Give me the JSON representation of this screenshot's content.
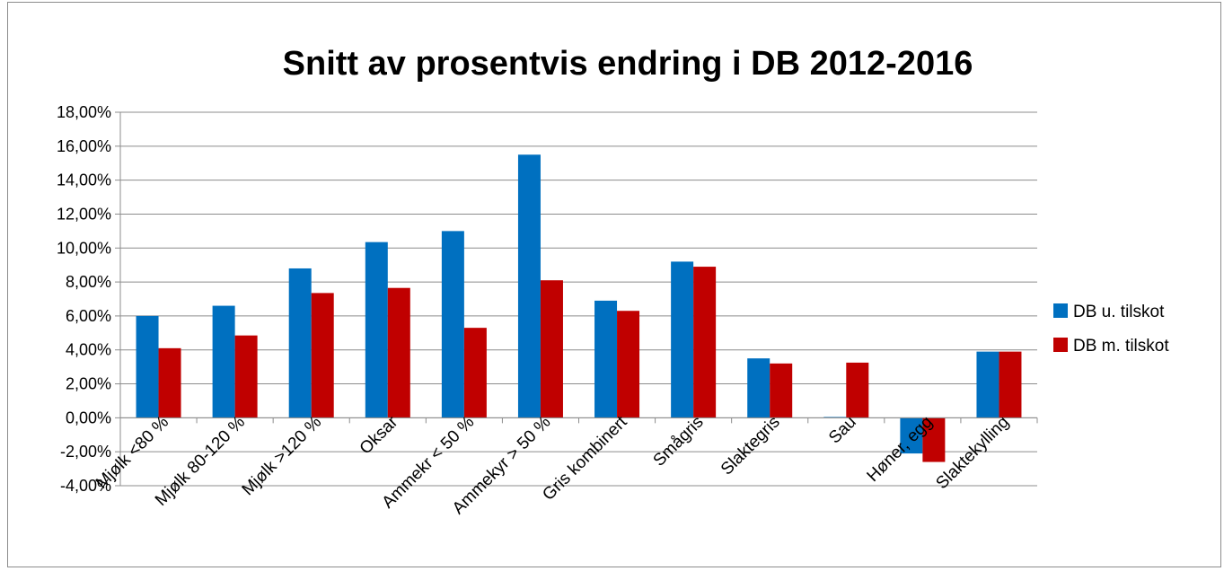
{
  "chart_data": {
    "type": "bar",
    "title": "Snitt av prosentvis endring i DB 2012-2016",
    "xlabel": "",
    "ylabel": "",
    "ylim": [
      -4,
      18
    ],
    "ytick_step": 2,
    "ytick_labels": [
      "-4,00%",
      "-2,00%",
      "0,00%",
      "2,00%",
      "4,00%",
      "6,00%",
      "8,00%",
      "10,00%",
      "12,00%",
      "14,00%",
      "16,00%",
      "18,00%"
    ],
    "grid": true,
    "legend_position": "right",
    "categories": [
      "Mjølk <80 %",
      "Mjølk 80-120 %",
      "Mjølk >120 %",
      "Oksar",
      "Ammekr < 50 %",
      "Ammekyr > 50 %",
      "Gris kombinert",
      "Smågris",
      "Slaktegris",
      "Sau",
      "Høner, egg",
      "Slaktekylling"
    ],
    "series": [
      {
        "name": "DB u. tilskot",
        "color": "#0070c0",
        "values": [
          6.0,
          6.6,
          8.8,
          10.35,
          11.0,
          15.5,
          6.9,
          9.2,
          3.5,
          0.05,
          -2.1,
          3.9
        ]
      },
      {
        "name": "DB m. tilskot",
        "color": "#c00000",
        "values": [
          4.1,
          4.85,
          7.35,
          7.65,
          5.3,
          8.1,
          6.3,
          8.9,
          3.2,
          3.25,
          -2.6,
          3.9
        ]
      }
    ]
  }
}
